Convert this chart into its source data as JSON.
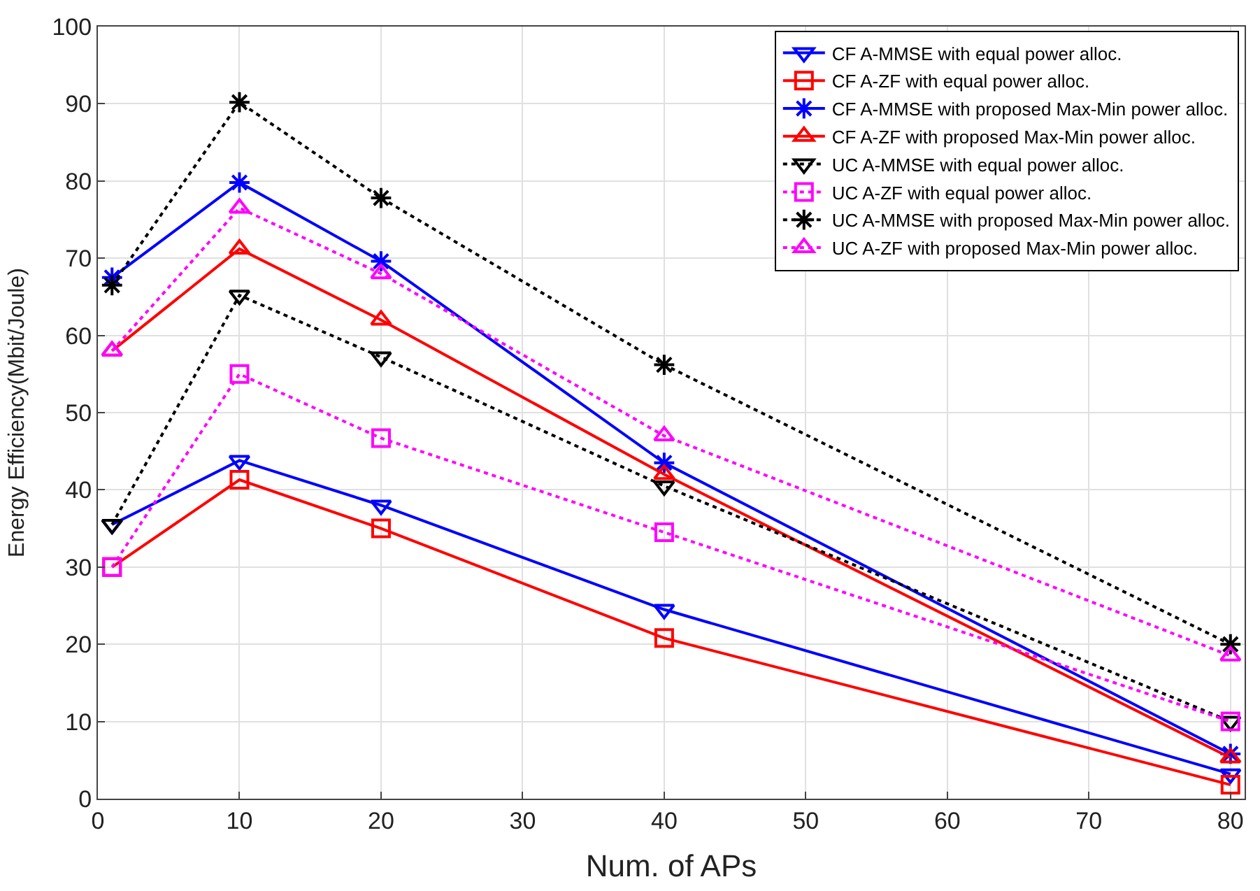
{
  "chart_data": {
    "type": "line",
    "xlabel": "Num. of APs",
    "ylabel": "Energy Efficiency(Mbit/Joule)",
    "x": [
      1,
      10,
      20,
      40,
      80
    ],
    "series": [
      {
        "name": "CF A-MMSE with equal power alloc.",
        "color": "#0000ff",
        "marker": "triangle-down",
        "line_style": "solid",
        "values": [
          35.5,
          43.8,
          38,
          24.5,
          3.2
        ]
      },
      {
        "name": "CF A-ZF with equal power alloc.",
        "color": "#ff0000",
        "marker": "square",
        "line_style": "solid",
        "values": [
          30,
          41.3,
          35,
          20.8,
          1.8
        ]
      },
      {
        "name": "CF A-MMSE with proposed Max-Min power alloc.",
        "color": "#0000ff",
        "marker": "cross",
        "line_style": "solid",
        "values": [
          67.5,
          79.8,
          69.6,
          43.5,
          5.8
        ]
      },
      {
        "name": "CF A-ZF with proposed Max-Min power alloc.",
        "color": "#ff0000",
        "marker": "triangle",
        "line_style": "solid",
        "values": [
          58,
          71.2,
          62,
          42,
          5.3
        ]
      },
      {
        "name": "UC A-MMSE with equal power alloc.",
        "color": "#000000",
        "marker": "triangle-down",
        "line_style": "dotted",
        "values": [
          35.5,
          65.2,
          57.2,
          40.5,
          10
        ]
      },
      {
        "name": "UC A-ZF with equal power alloc.",
        "color": "#ff00ff",
        "marker": "square",
        "line_style": "dotted",
        "values": [
          30,
          55,
          46.7,
          34.5,
          10
        ]
      },
      {
        "name": "UC A-MMSE with proposed Max-Min power alloc.",
        "color": "#000000",
        "marker": "cross",
        "line_style": "dotted",
        "values": [
          66.5,
          90.2,
          77.8,
          56.2,
          20
        ]
      },
      {
        "name": "UC A-ZF with proposed Max-Min power alloc.",
        "color": "#ff00ff",
        "marker": "triangle",
        "line_style": "dotted",
        "values": [
          58,
          76.5,
          68,
          47,
          18.5
        ]
      }
    ],
    "xlim": [
      0,
      81
    ],
    "xticks": [
      0,
      10,
      20,
      30,
      40,
      50,
      60,
      70,
      80
    ],
    "ylim": [
      0,
      100
    ],
    "yticks": [
      0,
      10,
      20,
      30,
      40,
      50,
      60,
      70,
      80,
      90,
      100
    ],
    "grid": true,
    "legend": "top right"
  }
}
